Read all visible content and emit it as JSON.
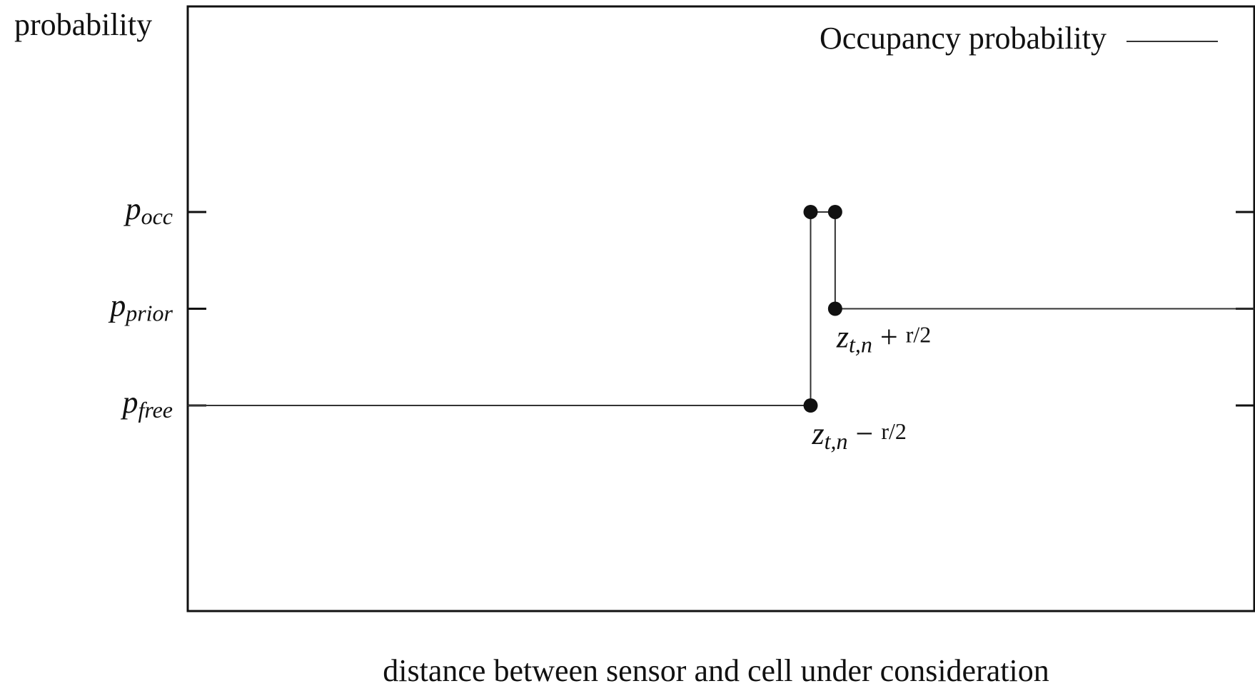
{
  "chart_data": {
    "type": "line",
    "ylabel": "probability",
    "xlabel": "distance between sensor and cell under consideration",
    "x": [
      0,
      5.84,
      5.84,
      6.07,
      6.07,
      10
    ],
    "series": [
      {
        "name": "Occupancy probability",
        "color": "#333333",
        "values": [
          0.3,
          0.3,
          0.7,
          0.7,
          0.5,
          0.5
        ],
        "markers": [
          false,
          true,
          true,
          true,
          true,
          false
        ]
      }
    ],
    "xlim": [
      0,
      10
    ],
    "ylim": [
      -0.125,
      1.125
    ],
    "yticks": [
      {
        "value": 0.3,
        "label": "pfree"
      },
      {
        "value": 0.5,
        "label": "pprior"
      },
      {
        "value": 0.7,
        "label": "pocc"
      }
    ],
    "annotations": [
      {
        "text": "zt,n − r/2",
        "x": 5.84,
        "y": 0.3
      },
      {
        "text": "zt,n + r/2",
        "x": 6.07,
        "y": 0.5
      }
    ],
    "legend": "upper right",
    "mirror_ticks": true
  }
}
